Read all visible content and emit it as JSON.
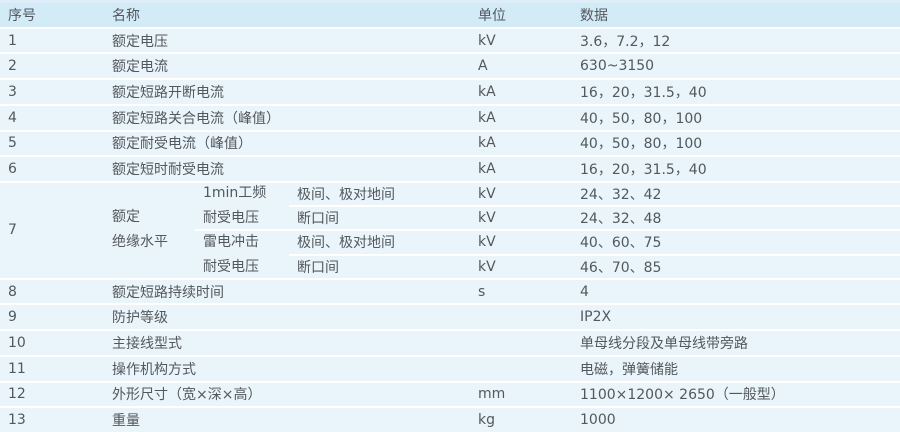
{
  "colors": {
    "header_bg": "#d3eaf7",
    "row_bg": "#eaf5fb",
    "separator": "#ffffff",
    "top_strip": "#ddeef8",
    "text": "#53585c"
  },
  "table": {
    "headers": {
      "no": "序号",
      "name": "名称",
      "unit": "单位",
      "data": "数据"
    },
    "rows_top": [
      {
        "no": "1",
        "name": "额定电压",
        "unit": "kV",
        "value": "3.6，7.2，12"
      },
      {
        "no": "2",
        "name": "额定电流",
        "unit": "A",
        "value": "630~3150"
      },
      {
        "no": "3",
        "name": "额定短路开断电流",
        "unit": "kA",
        "value": "16，20，31.5，40"
      },
      {
        "no": "4",
        "name": "额定短路关合电流（峰值）",
        "unit": "kA",
        "value": "40，50，80，100"
      },
      {
        "no": "5",
        "name": "额定耐受电流（峰值）",
        "unit": "kA",
        "value": "40，50，80，100"
      },
      {
        "no": "6",
        "name": "额定短时耐受电流",
        "unit": "kA",
        "value": "16，20，31.5，40"
      }
    ],
    "row7": {
      "no": "7",
      "name_line1": "额定",
      "name_line2": "绝缘水平",
      "groups": [
        {
          "label_line1": "1min工频",
          "label_line2": "耐受电压",
          "subrows": [
            {
              "scope": "极间、极对地间",
              "unit": "kV",
              "value": "24、32、42"
            },
            {
              "scope": "断口间",
              "unit": "kV",
              "value": "24、32、48"
            }
          ]
        },
        {
          "label_line1": "雷电冲击",
          "label_line2": "耐受电压",
          "subrows": [
            {
              "scope": "极间、极对地间",
              "unit": "kV",
              "value": "40、60、75"
            },
            {
              "scope": "断口间",
              "unit": "kV",
              "value": "46、70、85"
            }
          ]
        }
      ]
    },
    "rows_bottom": [
      {
        "no": "8",
        "name": "额定短路持续时间",
        "unit": "s",
        "value": "4"
      },
      {
        "no": "9",
        "name": "防护等级",
        "unit": "",
        "value": "IP2X"
      },
      {
        "no": "10",
        "name": "主接线型式",
        "unit": "",
        "value": "单母线分段及单母线带旁路"
      },
      {
        "no": "11",
        "name": "操作机构方式",
        "unit": "",
        "value": "电磁，弹簧储能"
      },
      {
        "no": "12",
        "name": "外形尺寸（宽×深×高）",
        "unit": "mm",
        "value": "1100×1200× 2650（一般型）"
      },
      {
        "no": "13",
        "name": "重量",
        "unit": "kg",
        "value": "1000"
      }
    ]
  }
}
